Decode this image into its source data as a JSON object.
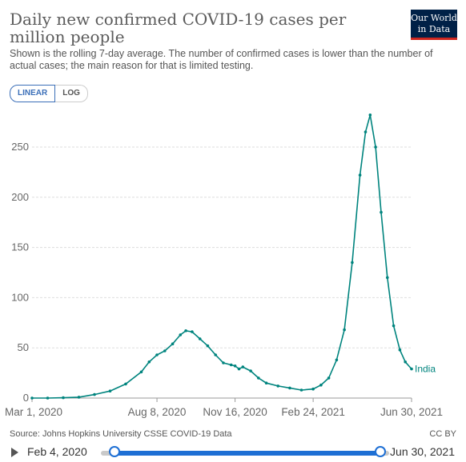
{
  "header": {
    "title": "Daily new confirmed COVID-19 cases per million people",
    "subtitle": "Shown is the rolling 7-day average. The number of confirmed cases is lower than the number of actual cases; the main reason for that is limited testing.",
    "logo_line1": "Our World",
    "logo_line2": "in Data"
  },
  "scale_toggle": {
    "linear_label": "LINEAR",
    "log_label": "LOG",
    "selected": "LINEAR"
  },
  "chart_data": {
    "type": "line",
    "y_ticks": [
      0,
      50,
      100,
      150,
      200,
      250
    ],
    "ylim": [
      0,
      285
    ],
    "x_ticks": [
      "Mar 1, 2020",
      "Aug 8, 2020",
      "Nov 16, 2020",
      "Feb 24, 2021",
      "Jun 30, 2021"
    ],
    "x_range": [
      "2020-03-01",
      "2021-06-30"
    ],
    "grid": true,
    "series": [
      {
        "name": "India",
        "color": "#00847e",
        "points": [
          [
            "2020-03-01",
            0
          ],
          [
            "2020-03-21",
            0
          ],
          [
            "2020-04-10",
            0.3
          ],
          [
            "2020-04-30",
            0.9
          ],
          [
            "2020-05-20",
            3.5
          ],
          [
            "2020-06-09",
            7
          ],
          [
            "2020-06-29",
            14
          ],
          [
            "2020-07-19",
            26
          ],
          [
            "2020-07-29",
            36
          ],
          [
            "2020-08-08",
            43
          ],
          [
            "2020-08-18",
            47
          ],
          [
            "2020-08-28",
            54
          ],
          [
            "2020-09-07",
            63
          ],
          [
            "2020-09-14",
            67
          ],
          [
            "2020-09-22",
            66
          ],
          [
            "2020-10-02",
            59
          ],
          [
            "2020-10-12",
            52
          ],
          [
            "2020-10-22",
            43
          ],
          [
            "2020-11-01",
            35
          ],
          [
            "2020-11-11",
            33
          ],
          [
            "2020-11-16",
            32
          ],
          [
            "2020-11-21",
            29
          ],
          [
            "2020-11-26",
            31
          ],
          [
            "2020-12-06",
            27
          ],
          [
            "2020-12-16",
            20
          ],
          [
            "2020-12-26",
            15
          ],
          [
            "2021-01-10",
            12
          ],
          [
            "2021-01-25",
            10
          ],
          [
            "2021-02-09",
            8
          ],
          [
            "2021-02-24",
            9
          ],
          [
            "2021-03-06",
            13
          ],
          [
            "2021-03-16",
            20
          ],
          [
            "2021-03-26",
            38
          ],
          [
            "2021-04-05",
            68
          ],
          [
            "2021-04-15",
            135
          ],
          [
            "2021-04-25",
            222
          ],
          [
            "2021-05-02",
            265
          ],
          [
            "2021-05-08",
            282
          ],
          [
            "2021-05-15",
            250
          ],
          [
            "2021-05-22",
            185
          ],
          [
            "2021-05-30",
            120
          ],
          [
            "2021-06-07",
            72
          ],
          [
            "2021-06-15",
            48
          ],
          [
            "2021-06-22",
            36
          ],
          [
            "2021-06-30",
            29
          ]
        ]
      }
    ]
  },
  "footer": {
    "source": "Source: Johns Hopkins University CSSE COVID-19 Data",
    "license": "CC BY"
  },
  "timeline": {
    "start_label": "Feb 4, 2020",
    "end_label": "Jun 30, 2021"
  }
}
